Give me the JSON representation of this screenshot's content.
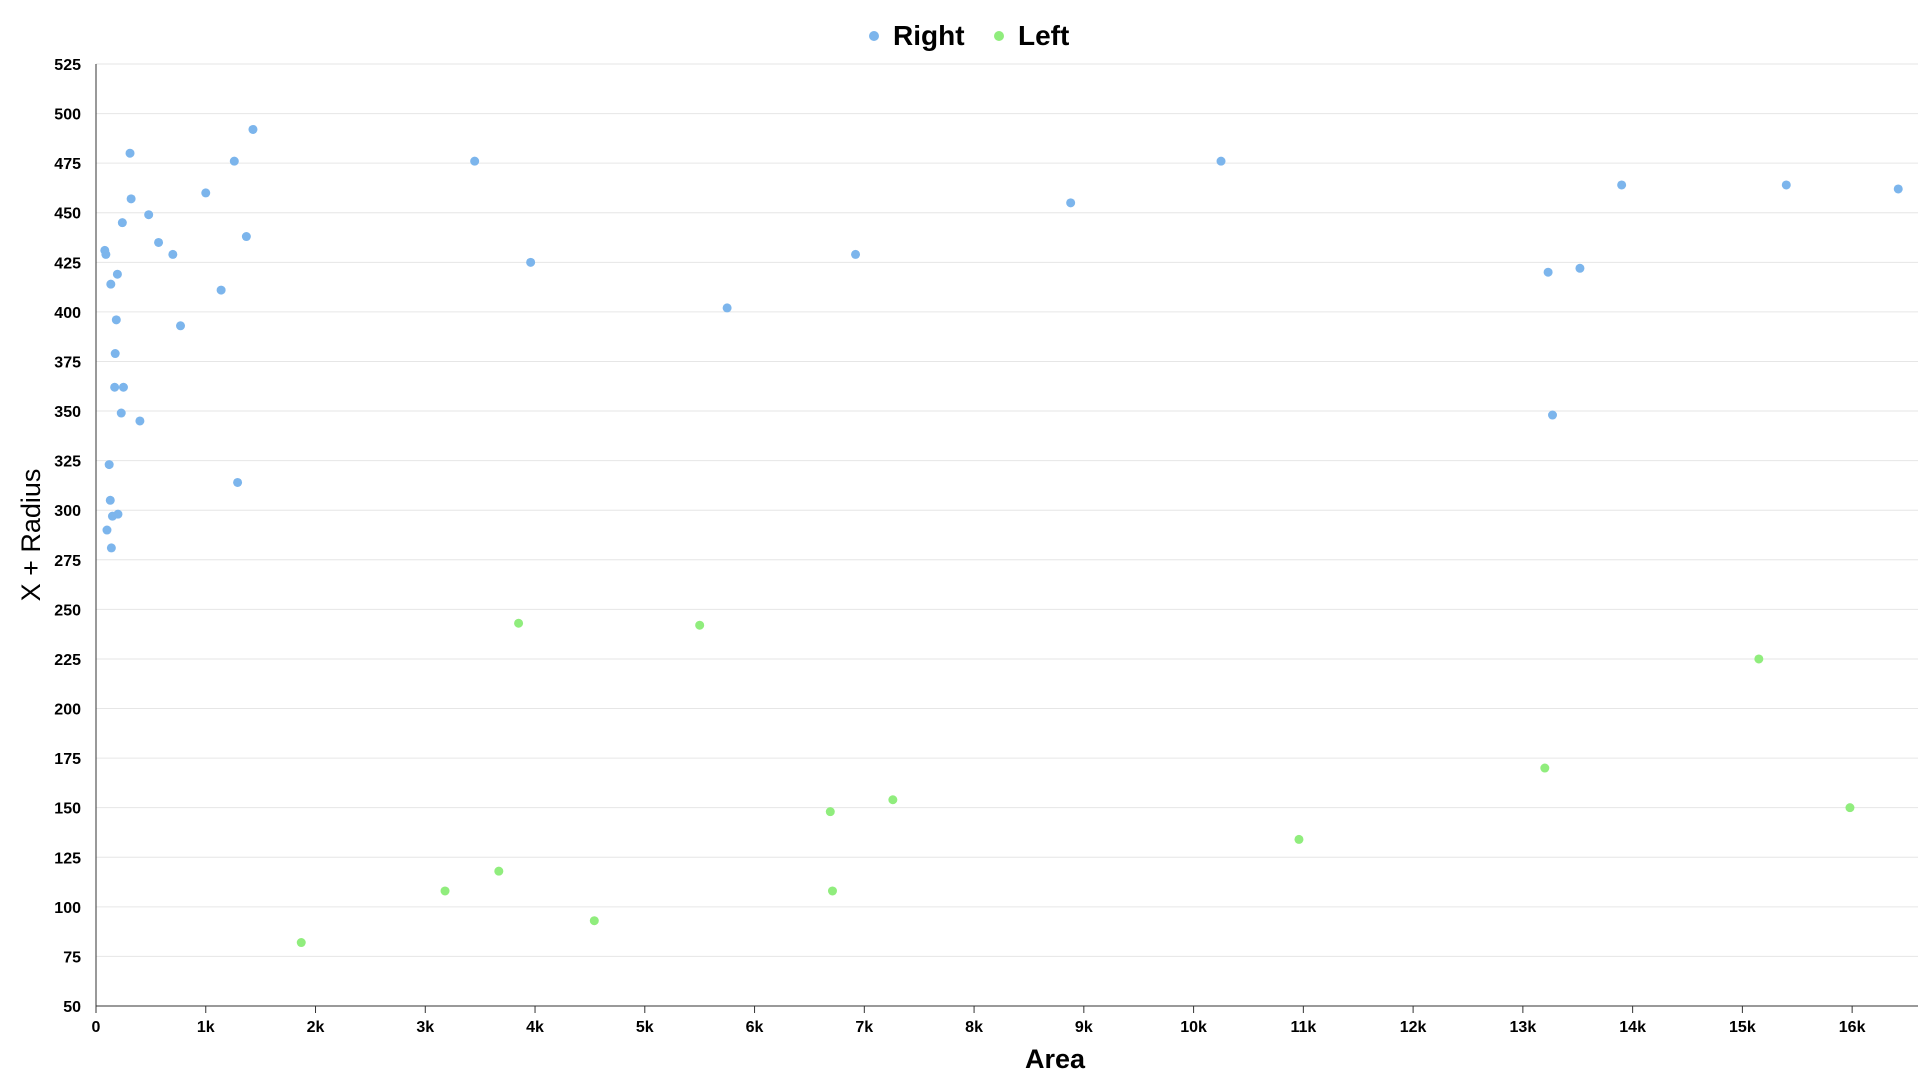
{
  "chart_data": {
    "type": "scatter",
    "xlabel": "Area",
    "ylabel": "X + Radius",
    "xlim": [
      0,
      16600
    ],
    "ylim": [
      50,
      525
    ],
    "xticks": [
      0,
      1000,
      2000,
      3000,
      4000,
      5000,
      6000,
      7000,
      8000,
      9000,
      10000,
      11000,
      12000,
      13000,
      14000,
      15000,
      16000
    ],
    "xtick_labels": [
      "0",
      "1k",
      "2k",
      "3k",
      "4k",
      "5k",
      "6k",
      "7k",
      "8k",
      "9k",
      "10k",
      "11k",
      "12k",
      "13k",
      "14k",
      "15k",
      "16k"
    ],
    "yticks": [
      50,
      75,
      100,
      125,
      150,
      175,
      200,
      225,
      250,
      275,
      300,
      325,
      350,
      375,
      400,
      425,
      450,
      475,
      500,
      525
    ],
    "grid": "horizontal",
    "legend_position": "top-center",
    "series": [
      {
        "name": "Right",
        "color": "#7cb5ec",
        "points": [
          [
            80,
            431
          ],
          [
            90,
            429
          ],
          [
            100,
            290
          ],
          [
            120,
            323
          ],
          [
            130,
            305
          ],
          [
            135,
            414
          ],
          [
            140,
            281
          ],
          [
            150,
            297
          ],
          [
            170,
            362
          ],
          [
            175,
            379
          ],
          [
            185,
            396
          ],
          [
            195,
            419
          ],
          [
            200,
            298
          ],
          [
            230,
            349
          ],
          [
            240,
            445
          ],
          [
            250,
            362
          ],
          [
            310,
            480
          ],
          [
            320,
            457
          ],
          [
            400,
            345
          ],
          [
            480,
            449
          ],
          [
            570,
            435
          ],
          [
            700,
            429
          ],
          [
            770,
            393
          ],
          [
            1000,
            460
          ],
          [
            1140,
            411
          ],
          [
            1260,
            476
          ],
          [
            1290,
            314
          ],
          [
            1370,
            438
          ],
          [
            1430,
            492
          ],
          [
            3450,
            476
          ],
          [
            3960,
            425
          ],
          [
            5750,
            402
          ],
          [
            6920,
            429
          ],
          [
            8880,
            455
          ],
          [
            10250,
            476
          ],
          [
            13230,
            420
          ],
          [
            13270,
            348
          ],
          [
            13520,
            422
          ],
          [
            13900,
            464
          ],
          [
            15400,
            464
          ],
          [
            16420,
            462
          ]
        ]
      },
      {
        "name": "Left",
        "color": "#90ed7d",
        "points": [
          [
            1870,
            82
          ],
          [
            3180,
            108
          ],
          [
            3670,
            118
          ],
          [
            3850,
            243
          ],
          [
            4540,
            93
          ],
          [
            5500,
            242
          ],
          [
            6690,
            148
          ],
          [
            6710,
            108
          ],
          [
            7260,
            154
          ],
          [
            10960,
            134
          ],
          [
            13200,
            170
          ],
          [
            15150,
            225
          ],
          [
            15980,
            150
          ]
        ]
      }
    ]
  }
}
